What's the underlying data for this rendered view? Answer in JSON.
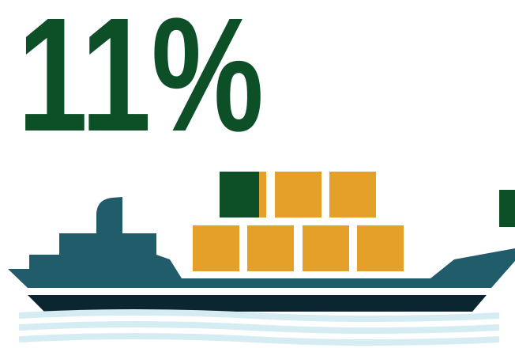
{
  "headline": "11%"
}
